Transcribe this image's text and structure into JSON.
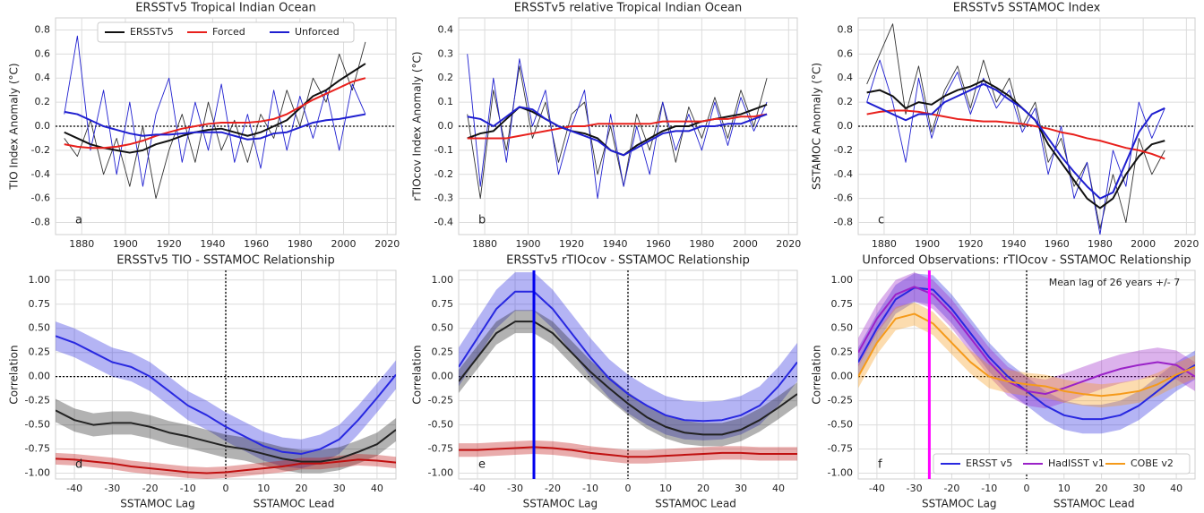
{
  "chart_data": [
    {
      "type": "line",
      "title": "ERSSTv5 Tropical Indian Ocean",
      "ylabel": "TIO Index Anomaly (°C)",
      "panel": "a",
      "xlim": [
        1868,
        2024
      ],
      "xticks": [
        1880,
        1900,
        1920,
        1940,
        1960,
        1980,
        2000,
        2020
      ],
      "ylim": [
        -0.9,
        0.9
      ],
      "yticks": [
        -0.8,
        -0.6,
        -0.4,
        -0.2,
        {
          "value": 0,
          "label": "0.0"
        },
        0.2,
        0.4,
        0.6,
        0.8
      ],
      "hline": 0,
      "legend": "upper center",
      "grid": true,
      "x": [
        1872,
        1878,
        1884,
        1890,
        1896,
        1902,
        1908,
        1914,
        1920,
        1926,
        1932,
        1938,
        1944,
        1950,
        1956,
        1962,
        1968,
        1974,
        1980,
        1986,
        1992,
        1998,
        2004,
        2010
      ],
      "series": [
        {
          "color": "#333333",
          "style": "thin",
          "values": [
            -0.1,
            -0.25,
            0.05,
            -0.4,
            -0.1,
            -0.5,
            0.0,
            -0.6,
            -0.2,
            0.1,
            -0.3,
            0.2,
            -0.2,
            0.05,
            -0.3,
            0.1,
            -0.1,
            0.3,
            0.0,
            0.4,
            0.2,
            0.6,
            0.3,
            0.7
          ]
        },
        {
          "color": "#1f1fd0",
          "style": "thin",
          "values": [
            0.1,
            0.75,
            -0.2,
            0.3,
            -0.4,
            0.2,
            -0.5,
            0.1,
            0.4,
            -0.3,
            0.2,
            -0.2,
            0.35,
            -0.3,
            0.1,
            -0.35,
            0.3,
            -0.2,
            0.25,
            -0.1,
            0.3,
            -0.2,
            0.35,
            0.1
          ]
        },
        {
          "name": "ERSSTv5",
          "color": "#111111",
          "values": [
            -0.05,
            -0.1,
            -0.15,
            -0.18,
            -0.2,
            -0.22,
            -0.2,
            -0.15,
            -0.12,
            -0.08,
            -0.05,
            -0.03,
            -0.02,
            -0.05,
            -0.08,
            -0.05,
            0.0,
            0.05,
            0.15,
            0.25,
            0.3,
            0.38,
            0.45,
            0.52
          ]
        },
        {
          "name": "Forced",
          "color": "#e8201c",
          "values": [
            -0.15,
            -0.17,
            -0.18,
            -0.18,
            -0.17,
            -0.15,
            -0.12,
            -0.08,
            -0.05,
            -0.02,
            0.0,
            0.02,
            0.03,
            0.03,
            0.03,
            0.04,
            0.06,
            0.1,
            0.16,
            0.22,
            0.27,
            0.32,
            0.37,
            0.4
          ]
        },
        {
          "name": "Unforced",
          "color": "#1f1fd0",
          "values": [
            0.12,
            0.1,
            0.05,
            0.0,
            -0.03,
            -0.06,
            -0.08,
            -0.07,
            -0.07,
            -0.06,
            -0.05,
            -0.05,
            -0.05,
            -0.08,
            -0.11,
            -0.1,
            -0.06,
            -0.05,
            -0.01,
            0.03,
            0.05,
            0.06,
            0.08,
            0.1
          ]
        }
      ]
    },
    {
      "type": "line",
      "title": "ERSSTv5 relative Tropical Indian Ocean",
      "ylabel": "rTIOcov Index Anomaly (°C)",
      "panel": "b",
      "xlim": [
        1868,
        2024
      ],
      "xticks": [
        1880,
        1900,
        1920,
        1940,
        1960,
        1980,
        2000,
        2020
      ],
      "ylim": [
        -0.45,
        0.45
      ],
      "yticks": [
        -0.4,
        -0.3,
        -0.2,
        -0.1,
        {
          "value": 0,
          "label": "0.0"
        },
        0.1,
        0.2,
        0.3,
        0.4
      ],
      "hline": 0,
      "grid": true,
      "x": [
        1872,
        1878,
        1884,
        1890,
        1896,
        1902,
        1908,
        1914,
        1920,
        1926,
        1932,
        1938,
        1944,
        1950,
        1956,
        1962,
        1968,
        1974,
        1980,
        1986,
        1992,
        1998,
        2004,
        2010
      ],
      "series": [
        {
          "color": "#333333",
          "style": "thin",
          "values": [
            0.05,
            -0.3,
            0.15,
            -0.1,
            0.25,
            -0.05,
            0.1,
            -0.15,
            0.05,
            0.1,
            -0.2,
            0.0,
            -0.25,
            0.05,
            -0.1,
            0.1,
            -0.15,
            0.08,
            -0.05,
            0.12,
            -0.05,
            0.15,
            0.0,
            0.2
          ]
        },
        {
          "color": "#1f1fd0",
          "style": "thin",
          "values": [
            0.3,
            -0.25,
            0.2,
            -0.15,
            0.28,
            0.0,
            0.15,
            -0.2,
            0.0,
            0.15,
            -0.3,
            0.05,
            -0.25,
            0.0,
            -0.2,
            0.1,
            -0.1,
            0.05,
            -0.1,
            0.1,
            -0.08,
            0.12,
            -0.02,
            0.1
          ]
        },
        {
          "color": "#111111",
          "values": [
            -0.05,
            -0.03,
            -0.02,
            0.03,
            0.08,
            0.06,
            0.03,
            0.0,
            -0.02,
            -0.03,
            -0.05,
            -0.1,
            -0.12,
            -0.08,
            -0.05,
            -0.02,
            0.0,
            0.0,
            0.02,
            0.03,
            0.04,
            0.05,
            0.07,
            0.09
          ]
        },
        {
          "color": "#e8201c",
          "values": [
            -0.05,
            -0.05,
            -0.05,
            -0.05,
            -0.04,
            -0.03,
            -0.02,
            -0.01,
            0.0,
            0.0,
            0.01,
            0.01,
            0.01,
            0.01,
            0.01,
            0.02,
            0.02,
            0.02,
            0.02,
            0.03,
            0.03,
            0.04,
            0.04,
            0.05
          ]
        },
        {
          "color": "#1f1fd0",
          "values": [
            0.04,
            0.03,
            0.0,
            0.04,
            0.08,
            0.07,
            0.03,
            0.0,
            -0.02,
            -0.04,
            -0.06,
            -0.1,
            -0.12,
            -0.09,
            -0.06,
            -0.03,
            -0.02,
            -0.02,
            0.0,
            0.0,
            0.01,
            0.01,
            0.03,
            0.05
          ]
        }
      ]
    },
    {
      "type": "line",
      "title": "ERSSTv5 SSTAMOC Index",
      "ylabel": "SSTAMOC Anomaly (°C)",
      "panel": "c",
      "xlim": [
        1868,
        2024
      ],
      "xticks": [
        1880,
        1900,
        1920,
        1940,
        1960,
        1980,
        2000,
        2020
      ],
      "ylim": [
        -0.9,
        0.9
      ],
      "yticks": [
        -0.8,
        -0.6,
        -0.4,
        -0.2,
        {
          "value": 0,
          "label": "0.0"
        },
        0.2,
        0.4,
        0.6,
        0.8
      ],
      "hline": 0,
      "grid": true,
      "x": [
        1872,
        1878,
        1884,
        1890,
        1896,
        1902,
        1908,
        1914,
        1920,
        1926,
        1932,
        1938,
        1944,
        1950,
        1956,
        1962,
        1968,
        1974,
        1980,
        1986,
        1992,
        1998,
        2004,
        2010
      ],
      "series": [
        {
          "color": "#333333",
          "style": "thin",
          "values": [
            0.35,
            0.6,
            0.85,
            0.1,
            0.5,
            -0.05,
            0.3,
            0.5,
            0.15,
            0.55,
            0.2,
            0.4,
            0.0,
            0.2,
            -0.3,
            -0.1,
            -0.5,
            -0.3,
            -0.85,
            -0.4,
            -0.8,
            -0.1,
            -0.4,
            -0.2
          ]
        },
        {
          "color": "#1f1fd0",
          "style": "thin",
          "values": [
            0.2,
            0.55,
            0.2,
            -0.3,
            0.4,
            -0.1,
            0.25,
            0.45,
            0.1,
            0.4,
            0.15,
            0.3,
            -0.05,
            0.15,
            -0.4,
            0.0,
            -0.6,
            -0.3,
            -0.9,
            -0.2,
            -0.5,
            0.2,
            -0.1,
            0.15
          ]
        },
        {
          "color": "#111111",
          "values": [
            0.28,
            0.3,
            0.25,
            0.15,
            0.2,
            0.18,
            0.25,
            0.3,
            0.33,
            0.38,
            0.32,
            0.25,
            0.15,
            0.05,
            -0.15,
            -0.3,
            -0.45,
            -0.6,
            -0.68,
            -0.6,
            -0.4,
            -0.25,
            -0.15,
            -0.12
          ]
        },
        {
          "color": "#e8201c",
          "values": [
            0.1,
            0.12,
            0.13,
            0.13,
            0.12,
            0.1,
            0.08,
            0.06,
            0.05,
            0.04,
            0.04,
            0.03,
            0.02,
            0.0,
            -0.02,
            -0.05,
            -0.07,
            -0.1,
            -0.12,
            -0.15,
            -0.18,
            -0.2,
            -0.23,
            -0.27
          ]
        },
        {
          "color": "#1f1fd0",
          "values": [
            0.2,
            0.15,
            0.1,
            0.05,
            0.1,
            0.1,
            0.2,
            0.25,
            0.3,
            0.35,
            0.3,
            0.22,
            0.15,
            0.05,
            -0.1,
            -0.25,
            -0.38,
            -0.5,
            -0.6,
            -0.55,
            -0.3,
            -0.05,
            0.1,
            0.15
          ]
        }
      ]
    },
    {
      "type": "line",
      "title": "ERSSTv5 TIO - SSTAMOC Relationship",
      "ylabel": "Correlation",
      "xlabels": [
        "SSTAMOC Lag",
        "SSTAMOC Lead"
      ],
      "panel": "d",
      "xlim": [
        -45,
        45
      ],
      "xticks": [
        -40,
        -30,
        -20,
        -10,
        0,
        10,
        20,
        30,
        40
      ],
      "ylim": [
        -1.06,
        1.1
      ],
      "yticks": [
        {
          "value": 1,
          "label": "1.00"
        },
        0.75,
        {
          "value": 0.5,
          "label": "0.50"
        },
        0.25,
        {
          "value": 0,
          "label": "0.00"
        },
        -0.25,
        {
          "value": -0.5,
          "label": "-0.50"
        },
        -0.75,
        {
          "value": -1,
          "label": "-1.00"
        }
      ],
      "hline": 0,
      "vline": 0,
      "grid": true,
      "x": [
        -45,
        -40,
        -35,
        -30,
        -25,
        -20,
        -15,
        -10,
        -5,
        0,
        5,
        10,
        15,
        20,
        25,
        30,
        35,
        40,
        45
      ],
      "series": [
        {
          "color": "#2828e0",
          "band": 0.15,
          "values": [
            0.42,
            0.35,
            0.25,
            0.15,
            0.1,
            0.0,
            -0.15,
            -0.3,
            -0.4,
            -0.52,
            -0.62,
            -0.72,
            -0.78,
            -0.8,
            -0.75,
            -0.65,
            -0.45,
            -0.22,
            0.02
          ]
        },
        {
          "color": "#222222",
          "band": 0.12,
          "values": [
            -0.35,
            -0.45,
            -0.5,
            -0.48,
            -0.48,
            -0.52,
            -0.58,
            -0.62,
            -0.67,
            -0.72,
            -0.75,
            -0.8,
            -0.85,
            -0.88,
            -0.88,
            -0.85,
            -0.78,
            -0.7,
            -0.55
          ]
        },
        {
          "color": "#c01010",
          "band": 0.06,
          "values": [
            -0.85,
            -0.86,
            -0.88,
            -0.9,
            -0.93,
            -0.95,
            -0.97,
            -0.99,
            -1.0,
            -0.99,
            -0.97,
            -0.95,
            -0.93,
            -0.9,
            -0.9,
            -0.88,
            -0.86,
            -0.87,
            -0.89
          ]
        }
      ]
    },
    {
      "type": "line",
      "title": "ERSSTv5 rTIOcov - SSTAMOC Relationship",
      "ylabel": "Correlation",
      "xlabels": [
        "SSTAMOC Lag",
        "SSTAMOC Lead"
      ],
      "panel": "e",
      "xlim": [
        -45,
        45
      ],
      "xticks": [
        -40,
        -30,
        -20,
        -10,
        0,
        10,
        20,
        30,
        40
      ],
      "ylim": [
        -1.06,
        1.1
      ],
      "yticks": [
        {
          "value": 1,
          "label": "1.00"
        },
        0.75,
        {
          "value": 0.5,
          "label": "0.50"
        },
        0.25,
        {
          "value": 0,
          "label": "0.00"
        },
        -0.25,
        {
          "value": -0.5,
          "label": "-0.50"
        },
        -0.75,
        {
          "value": -1,
          "label": "-1.00"
        }
      ],
      "hline": 0,
      "vline": 0,
      "marker_line": {
        "value": -25,
        "color": "#0000ee"
      },
      "grid": true,
      "x": [
        -45,
        -40,
        -35,
        -30,
        -25,
        -20,
        -15,
        -10,
        -5,
        0,
        5,
        10,
        15,
        20,
        25,
        30,
        35,
        40,
        45
      ],
      "series": [
        {
          "color": "#2828e0",
          "band": 0.2,
          "values": [
            0.1,
            0.4,
            0.7,
            0.88,
            0.88,
            0.7,
            0.45,
            0.2,
            -0.02,
            -0.18,
            -0.3,
            -0.4,
            -0.45,
            -0.46,
            -0.45,
            -0.4,
            -0.3,
            -0.1,
            0.15
          ]
        },
        {
          "color": "#222222",
          "band": 0.12,
          "values": [
            -0.05,
            0.2,
            0.45,
            0.57,
            0.57,
            0.45,
            0.25,
            0.05,
            -0.12,
            -0.28,
            -0.42,
            -0.52,
            -0.58,
            -0.6,
            -0.6,
            -0.55,
            -0.45,
            -0.32,
            -0.18
          ]
        },
        {
          "color": "#c01010",
          "band": 0.07,
          "values": [
            -0.76,
            -0.76,
            -0.75,
            -0.74,
            -0.73,
            -0.74,
            -0.76,
            -0.79,
            -0.81,
            -0.83,
            -0.83,
            -0.82,
            -0.81,
            -0.8,
            -0.79,
            -0.79,
            -0.8,
            -0.8,
            -0.8
          ]
        }
      ]
    },
    {
      "type": "line",
      "title": "Unforced Observations: rTIOcov - SSTAMOC Relationship",
      "ylabel": "Correlation",
      "xlabels": [
        "SSTAMOC Lag",
        "SSTAMOC Lead"
      ],
      "panel": "f",
      "annotation": "Mean lag of 26 years +/- 7",
      "xlim": [
        -45,
        45
      ],
      "xticks": [
        -40,
        -30,
        -20,
        -10,
        0,
        10,
        20,
        30,
        40
      ],
      "ylim": [
        -1.06,
        1.1
      ],
      "yticks": [
        {
          "value": 1,
          "label": "1.00"
        },
        0.75,
        {
          "value": 0.5,
          "label": "0.50"
        },
        0.25,
        {
          "value": 0,
          "label": "0.00"
        },
        -0.25,
        {
          "value": -0.5,
          "label": "-0.50"
        },
        -0.75,
        {
          "value": -1,
          "label": "-1.00"
        }
      ],
      "hline": 0,
      "vline": 0,
      "marker_line": {
        "value": -26,
        "color": "#ff00ff"
      },
      "legend": "lower right",
      "grid": true,
      "x": [
        -45,
        -40,
        -35,
        -30,
        -25,
        -20,
        -15,
        -10,
        -5,
        0,
        5,
        10,
        15,
        20,
        25,
        30,
        35,
        40,
        45
      ],
      "series": [
        {
          "name": "ERSST v5",
          "color": "#2828e0",
          "band": 0.15,
          "values": [
            0.15,
            0.5,
            0.8,
            0.92,
            0.9,
            0.7,
            0.45,
            0.2,
            0.0,
            -0.15,
            -0.3,
            -0.4,
            -0.44,
            -0.44,
            -0.4,
            -0.3,
            -0.15,
            0.0,
            0.12
          ]
        },
        {
          "name": "HadISST v1",
          "color": "#9a22c8",
          "band": 0.15,
          "values": [
            0.25,
            0.6,
            0.85,
            0.93,
            0.85,
            0.65,
            0.4,
            0.15,
            -0.05,
            -0.15,
            -0.18,
            -0.12,
            -0.05,
            0.02,
            0.08,
            0.12,
            0.15,
            0.12,
            0.0
          ]
        },
        {
          "name": "COBE v2",
          "color": "#f59a1a",
          "band": 0.12,
          "values": [
            0.0,
            0.35,
            0.6,
            0.65,
            0.55,
            0.35,
            0.15,
            0.0,
            -0.05,
            -0.08,
            -0.1,
            -0.15,
            -0.18,
            -0.2,
            -0.18,
            -0.15,
            -0.08,
            0.02,
            0.1
          ]
        }
      ]
    }
  ]
}
